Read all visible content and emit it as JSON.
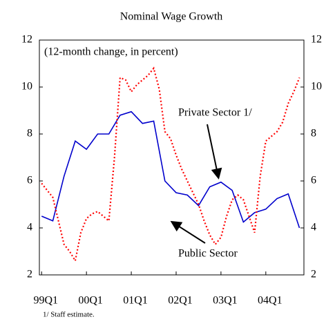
{
  "chart_data": {
    "type": "line",
    "title": "Nominal Wage Growth",
    "annotations": [
      "(12-month change, in percent)",
      "Private Sector 1/",
      "Public Sector"
    ],
    "footnote": "1/ Staff estimate.",
    "xlim": [
      -0.2,
      23.4
    ],
    "xticks": [
      {
        "value": 0,
        "label": "99Q1"
      },
      {
        "value": 4,
        "label": "00Q1"
      },
      {
        "value": 8,
        "label": "01Q1"
      },
      {
        "value": 12,
        "label": "02Q1"
      },
      {
        "value": 16,
        "label": "03Q1"
      },
      {
        "value": 20,
        "label": "04Q1"
      }
    ],
    "ylim": [
      2,
      12
    ],
    "yticks": [
      2,
      4,
      6,
      8,
      10,
      12
    ],
    "y2lim": [
      2,
      12
    ],
    "y2ticks": [
      2,
      4,
      6,
      8,
      10,
      12
    ],
    "series": [
      {
        "name": "Private Sector",
        "color": "#0000cc",
        "dash": false,
        "x": [
          0,
          1,
          2,
          3,
          4,
          5,
          6,
          7,
          8,
          9,
          10,
          11,
          12,
          13,
          14,
          15,
          16,
          17,
          18,
          19,
          20,
          21,
          22,
          23
        ],
        "values": [
          4.5,
          4.3,
          6.2,
          7.7,
          7.35,
          8.0,
          8.0,
          8.8,
          8.95,
          8.45,
          8.55,
          6.0,
          5.5,
          5.4,
          4.95,
          5.75,
          5.95,
          5.6,
          4.25,
          4.65,
          4.8,
          5.25,
          5.45,
          4.0
        ]
      },
      {
        "name": "Public Sector",
        "color": "#ff0000",
        "dash": true,
        "x": [
          0,
          0.5,
          1,
          1.5,
          2,
          2.5,
          3,
          3.5,
          4,
          4.5,
          5,
          5.5,
          6,
          6.5,
          7,
          7.5,
          8,
          8.5,
          9,
          9.5,
          10,
          10.5,
          11,
          11.5,
          12,
          12.5,
          13,
          13.5,
          14,
          14.5,
          15,
          15.5,
          16,
          16.5,
          17,
          17.5,
          18,
          18.5,
          19,
          19.5,
          20,
          20.5,
          21,
          21.5,
          22,
          22.5,
          23
        ],
        "values": [
          5.9,
          5.6,
          5.3,
          4.3,
          3.3,
          3.0,
          2.6,
          3.8,
          4.4,
          4.6,
          4.7,
          4.5,
          4.3,
          7.0,
          10.4,
          10.3,
          9.8,
          10.1,
          10.3,
          10.5,
          10.8,
          9.9,
          8.1,
          7.8,
          7.1,
          6.5,
          6.0,
          5.5,
          5.0,
          4.3,
          3.7,
          3.3,
          3.6,
          4.5,
          5.2,
          5.4,
          5.2,
          4.5,
          3.8,
          6.2,
          7.7,
          7.9,
          8.1,
          8.5,
          9.3,
          9.8,
          10.4
        ]
      }
    ]
  }
}
